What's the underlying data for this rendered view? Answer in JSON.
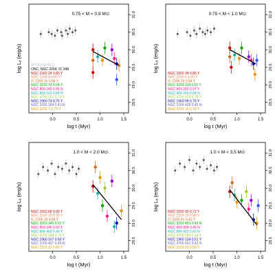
{
  "chart_data": [
    {
      "type": "scatter",
      "title": "0.75 < M < 0.9 M⊙",
      "xlabel": "log t  (Myr)",
      "ylabel": "log Lₓ  (erg/s)",
      "xlim": [
        -0.5,
        1.6
      ],
      "ylim": [
        28.2,
        31.3
      ],
      "xticks": [
        "0.0",
        "0.5",
        "1.0",
        "1.5"
      ],
      "yticks": [
        "28.5",
        "29.0",
        "29.5",
        "30.0",
        "30.5",
        "31.0"
      ],
      "grey_points": [
        {
          "x": -0.25,
          "y": 30.45
        },
        {
          "x": -0.08,
          "y": 30.5
        },
        {
          "x": -0.02,
          "y": 30.45
        },
        {
          "x": 0.05,
          "y": 30.4
        },
        {
          "x": 0.1,
          "y": 30.55
        },
        {
          "x": 0.18,
          "y": 30.5
        },
        {
          "x": 0.2,
          "y": 30.4
        },
        {
          "x": 0.28,
          "y": 30.55
        },
        {
          "x": 0.32,
          "y": 30.45
        },
        {
          "x": 0.36,
          "y": 30.6
        },
        {
          "x": 0.42,
          "y": 30.5
        },
        {
          "x": 0.48,
          "y": 30.55
        }
      ],
      "colored_points": [
        {
          "x": 0.85,
          "y": 30.0,
          "color": "#cc0000"
        },
        {
          "x": 0.85,
          "y": 29.7,
          "color": "#d2691e"
        },
        {
          "x": 0.85,
          "y": 29.35,
          "color": "#cc0000"
        },
        {
          "x": 0.95,
          "y": 29.8,
          "color": "#20b2aa"
        },
        {
          "x": 1.05,
          "y": 29.7,
          "color": "#e69500"
        },
        {
          "x": 1.1,
          "y": 30.05,
          "color": "#00aa00"
        },
        {
          "x": 1.25,
          "y": 30.0,
          "color": "#9400d3"
        },
        {
          "x": 1.3,
          "y": 29.75,
          "color": "#ff1493"
        },
        {
          "x": 1.35,
          "y": 29.6,
          "color": "#0000cc"
        },
        {
          "x": 1.35,
          "y": 29.15,
          "color": "#3355ff"
        },
        {
          "x": 1.4,
          "y": 29.55,
          "color": "#e69500"
        }
      ],
      "fit_line": {
        "x1": 0.85,
        "y1": 29.95,
        "x2": 1.4,
        "y2": 29.55
      },
      "legend": [
        {
          "text": "MYSIX/SFINCs",
          "color": "#bbbbbb"
        },
        {
          "text": "ONC, NGC 2264, IC 348",
          "color": "#000000"
        },
        {
          "text": "NGC 1502   24   0.83 Y",
          "color": "#cc0000"
        },
        {
          "text": "NGC 2169   4   1.00 Y",
          "color": "#ff7f50"
        },
        {
          "text": "IC 2395   16   0.94 Y",
          "color": "#d2691e"
        },
        {
          "text": "NGC 3293   74   0.54 Y",
          "color": "#00aa00"
        },
        {
          "text": "NGC 869   149   0.95 N",
          "color": "#ff1493"
        },
        {
          "text": "NGC 884   103   0.84 N",
          "color": "#20b2aa"
        },
        {
          "text": "NGC 4755   153   0.74 Y",
          "color": "#9acd32"
        },
        {
          "text": "NGC 1960   73   0.75 Y",
          "color": "#0000cc"
        },
        {
          "text": "NGC 3766   304   0.41 N",
          "color": "#6a5acd"
        },
        {
          "text": "NGC 2232   7   0.77 Y",
          "color": "#e69500"
        }
      ]
    },
    {
      "type": "scatter",
      "title": "0.75 < M < 1.0 M⊙",
      "xlabel": "log t  (Myr)",
      "ylabel": "log Lₓ  (erg/s)",
      "xlim": [
        -0.5,
        1.6
      ],
      "ylim": [
        28.2,
        31.3
      ],
      "xticks": [
        "0.0",
        "0.5",
        "1.0",
        "1.5"
      ],
      "yticks": [
        "28.5",
        "29.0",
        "29.5",
        "30.0",
        "30.5",
        "31.0"
      ],
      "grey_points": [
        {
          "x": -0.25,
          "y": 30.45
        },
        {
          "x": -0.05,
          "y": 30.5
        },
        {
          "x": 0.02,
          "y": 30.4
        },
        {
          "x": 0.1,
          "y": 30.55
        },
        {
          "x": 0.15,
          "y": 30.45
        },
        {
          "x": 0.22,
          "y": 30.6
        },
        {
          "x": 0.28,
          "y": 30.5
        },
        {
          "x": 0.33,
          "y": 30.45
        },
        {
          "x": 0.38,
          "y": 30.55
        },
        {
          "x": 0.45,
          "y": 30.5
        },
        {
          "x": 0.52,
          "y": 30.6
        }
      ],
      "colored_points": [
        {
          "x": 0.85,
          "y": 30.05,
          "color": "#cc0000"
        },
        {
          "x": 0.85,
          "y": 29.8,
          "color": "#d2691e"
        },
        {
          "x": 0.88,
          "y": 29.5,
          "color": "#cc0000"
        },
        {
          "x": 0.95,
          "y": 29.85,
          "color": "#20b2aa"
        },
        {
          "x": 1.05,
          "y": 29.75,
          "color": "#e69500"
        },
        {
          "x": 1.1,
          "y": 30.05,
          "color": "#00aa00"
        },
        {
          "x": 1.25,
          "y": 29.8,
          "color": "#9400d3"
        },
        {
          "x": 1.3,
          "y": 29.7,
          "color": "#ff1493"
        },
        {
          "x": 1.35,
          "y": 29.6,
          "color": "#0000cc"
        },
        {
          "x": 1.38,
          "y": 29.3,
          "color": "#e69500"
        },
        {
          "x": 1.42,
          "y": 29.7,
          "color": "#3355ff"
        }
      ],
      "fit_line": {
        "x1": 0.85,
        "y1": 30.0,
        "x2": 1.4,
        "y2": 29.6
      },
      "legend": [
        {
          "text": "NGC 1502   34   0.85 Y",
          "color": "#cc0000"
        },
        {
          "text": "NGC 2169   6   1.00 Y",
          "color": "#ff7f50"
        },
        {
          "text": "IC 2395   20   0.94 Y",
          "color": "#d2691e"
        },
        {
          "text": "NGC 3293   118   0.57 Y",
          "color": "#00aa00"
        },
        {
          "text": "NGC 869   250   0.97 Y",
          "color": "#ff1493"
        },
        {
          "text": "NGC 884   166   0.84 N",
          "color": "#20b2aa"
        },
        {
          "text": "NGC 4755   235   0.78 Y",
          "color": "#9acd32"
        },
        {
          "text": "NGC 1960   99   0.79 Y",
          "color": "#0000cc"
        },
        {
          "text": "NGC 3766   428   0.45 N",
          "color": "#6a5acd"
        },
        {
          "text": "NGC 2232   10   0.70 Y",
          "color": "#e69500"
        }
      ]
    },
    {
      "type": "scatter",
      "title": "1.0 < M < 2.0 M⊙",
      "xlabel": "log t  (Myr)",
      "ylabel": "log Lₓ  (erg/s)",
      "xlim": [
        -0.5,
        1.6
      ],
      "ylim": [
        28.2,
        31.3
      ],
      "xticks": [
        "0.0",
        "0.5",
        "1.0",
        "1.5"
      ],
      "yticks": [
        "28.5",
        "29.0",
        "29.5",
        "30.0",
        "30.5",
        "31.0"
      ],
      "grey_points": [
        {
          "x": -0.3,
          "y": 30.4
        },
        {
          "x": -0.2,
          "y": 30.6
        },
        {
          "x": -0.1,
          "y": 30.5
        },
        {
          "x": -0.02,
          "y": 30.7
        },
        {
          "x": 0.05,
          "y": 30.4
        },
        {
          "x": 0.12,
          "y": 30.6
        },
        {
          "x": 0.2,
          "y": 30.55
        },
        {
          "x": 0.28,
          "y": 30.7
        },
        {
          "x": 0.35,
          "y": 30.5
        },
        {
          "x": 0.42,
          "y": 30.6
        },
        {
          "x": 0.5,
          "y": 30.4
        },
        {
          "x": 0.55,
          "y": 30.55
        }
      ],
      "colored_points": [
        {
          "x": 0.85,
          "y": 30.05,
          "color": "#cc0000"
        },
        {
          "x": 0.9,
          "y": 30.6,
          "color": "#d2691e"
        },
        {
          "x": 0.95,
          "y": 29.85,
          "color": "#20b2aa"
        },
        {
          "x": 1.0,
          "y": 30.3,
          "color": "#e69500"
        },
        {
          "x": 1.05,
          "y": 29.5,
          "color": "#00aa00"
        },
        {
          "x": 1.1,
          "y": 30.0,
          "color": "#9acd32"
        },
        {
          "x": 1.15,
          "y": 29.2,
          "color": "#ff1493"
        },
        {
          "x": 1.25,
          "y": 30.2,
          "color": "#9400d3"
        },
        {
          "x": 1.3,
          "y": 28.9,
          "color": "#20b2aa"
        },
        {
          "x": 1.35,
          "y": 29.0,
          "color": "#0000cc"
        },
        {
          "x": 1.45,
          "y": 29.35,
          "color": "#e69500"
        }
      ],
      "fit_line": {
        "x1": 0.85,
        "y1": 30.1,
        "x2": 1.45,
        "y2": 29.1
      },
      "legend": [
        {
          "text": "NGC 1502   68   0.90 Y",
          "color": "#cc0000"
        },
        {
          "text": "NGC 2169   20   0.90 Y",
          "color": "#ff7f50"
        },
        {
          "text": "IC 2395   29   0.68 Y",
          "color": "#d2691e"
        },
        {
          "text": "NGC 3293   340   0.52 Y",
          "color": "#00aa00"
        },
        {
          "text": "NGC 869   646   0.63 Y",
          "color": "#ff1493"
        },
        {
          "text": "NGC 884   469   0.49 Y",
          "color": "#20b2aa"
        },
        {
          "text": "NGC 4755   549   0.72 Y",
          "color": "#9acd32"
        },
        {
          "text": "NGC 1960   107   0.50 Y",
          "color": "#0000cc"
        },
        {
          "text": "NGC 3766   467   0.49 N",
          "color": "#6a5acd"
        },
        {
          "text": "NGC 2232   13   0.69 Y",
          "color": "#e69500"
        }
      ]
    },
    {
      "type": "scatter",
      "title": "1.0 < M < 3.5 M⊙",
      "xlabel": "log t  (Myr)",
      "ylabel": "log Lₓ  (erg/s)",
      "xlim": [
        -0.5,
        1.6
      ],
      "ylim": [
        28.2,
        31.3
      ],
      "xticks": [
        "0.0",
        "0.5",
        "1.0",
        "1.5"
      ],
      "yticks": [
        "28.5",
        "29.0",
        "29.5",
        "30.0",
        "30.5",
        "31.0"
      ],
      "grey_points": [
        {
          "x": -0.3,
          "y": 30.5
        },
        {
          "x": -0.2,
          "y": 30.7
        },
        {
          "x": -0.1,
          "y": 30.6
        },
        {
          "x": 0.0,
          "y": 30.8
        },
        {
          "x": 0.08,
          "y": 30.5
        },
        {
          "x": 0.15,
          "y": 30.7
        },
        {
          "x": 0.22,
          "y": 30.6
        },
        {
          "x": 0.3,
          "y": 30.8
        },
        {
          "x": 0.37,
          "y": 30.55
        },
        {
          "x": 0.45,
          "y": 30.65
        },
        {
          "x": 0.52,
          "y": 30.5
        },
        {
          "x": 0.58,
          "y": 30.6
        }
      ],
      "colored_points": [
        {
          "x": 0.85,
          "y": 29.9,
          "color": "#cc0000"
        },
        {
          "x": 0.9,
          "y": 30.15,
          "color": "#d2691e"
        },
        {
          "x": 0.95,
          "y": 29.8,
          "color": "#20b2aa"
        },
        {
          "x": 1.0,
          "y": 29.6,
          "color": "#e69500"
        },
        {
          "x": 1.1,
          "y": 29.65,
          "color": "#00aa00"
        },
        {
          "x": 1.2,
          "y": 29.9,
          "color": "#9acd32"
        },
        {
          "x": 1.25,
          "y": 29.4,
          "color": "#ff1493"
        },
        {
          "x": 1.3,
          "y": 29.65,
          "color": "#9400d3"
        },
        {
          "x": 1.35,
          "y": 29.1,
          "color": "#0000cc"
        },
        {
          "x": 1.42,
          "y": 29.0,
          "color": "#e69500"
        },
        {
          "x": 1.45,
          "y": 29.5,
          "color": "#3355ff"
        }
      ],
      "fit_line": {
        "x1": 0.85,
        "y1": 29.95,
        "x2": 1.42,
        "y2": 28.95
      },
      "legend": [
        {
          "text": "NGC 1502   93   0.72 Y",
          "color": "#cc0000"
        },
        {
          "text": "NGC 2169   29   0.98 Y",
          "color": "#ff7f50"
        },
        {
          "text": "IC 2395   41   0.42 Y",
          "color": "#d2691e"
        },
        {
          "text": "NGC 3293   453   0.43 N",
          "color": "#00aa00"
        },
        {
          "text": "NGC 869   894   0.49 N",
          "color": "#ff1493"
        },
        {
          "text": "NGC 884   602   0.43 N",
          "color": "#20b2aa"
        },
        {
          "text": "NGC 4755   686   0.44 Y",
          "color": "#9acd32"
        },
        {
          "text": "NGC 1960   134   0.51 Y",
          "color": "#0000cc"
        },
        {
          "text": "NGC 3766   662   0.43 N",
          "color": "#6a5acd"
        },
        {
          "text": "NGC 2232   20   0.55 Y",
          "color": "#e69500"
        }
      ]
    }
  ]
}
